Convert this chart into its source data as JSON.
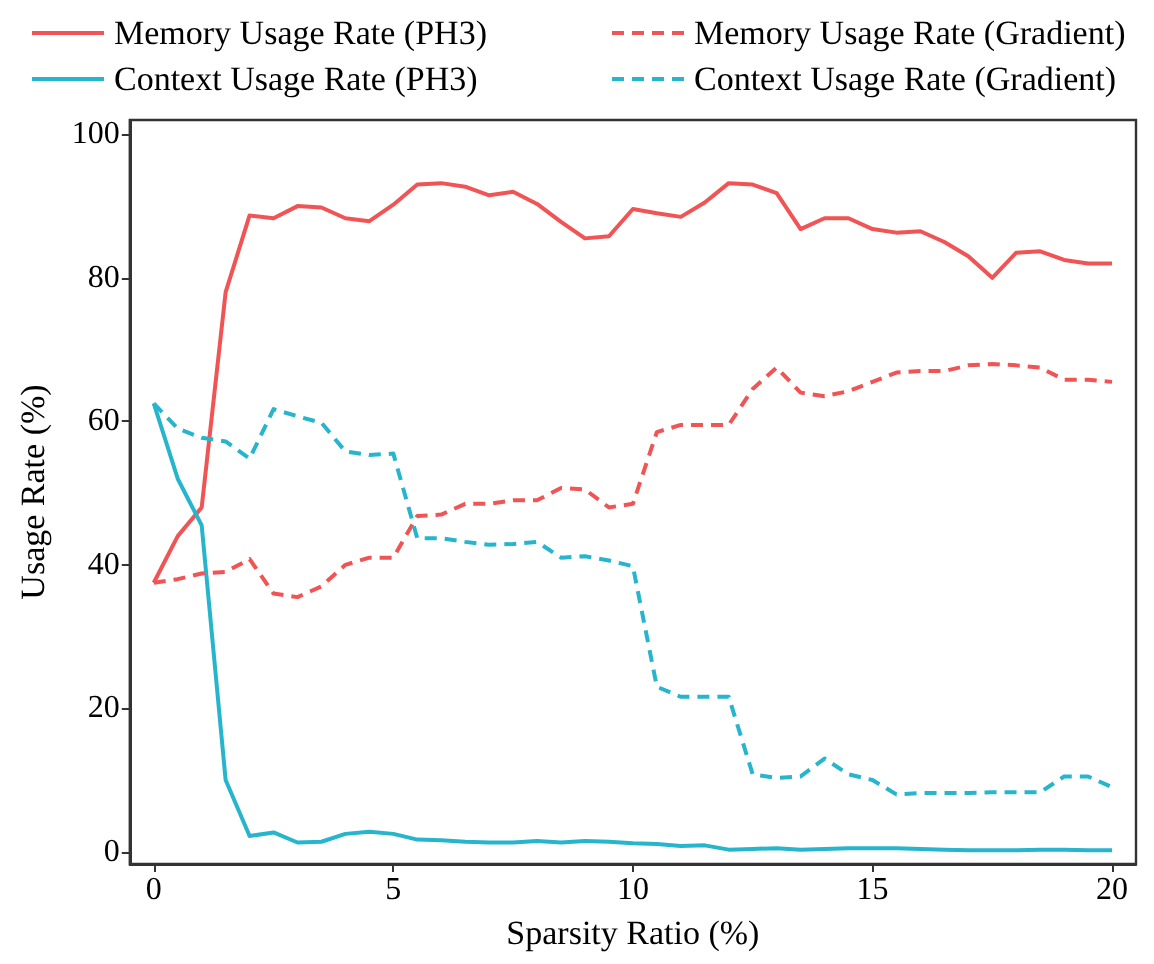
{
  "chart_data": {
    "type": "line",
    "xlabel": "Sparsity Ratio (%)",
    "ylabel": "Usage Rate (%)",
    "x": [
      0,
      0.5,
      1,
      1.5,
      2,
      2.5,
      3,
      3.5,
      4,
      4.5,
      5,
      5.5,
      6,
      6.5,
      7,
      7.5,
      8,
      8.5,
      9,
      9.5,
      10,
      10.5,
      11,
      11.5,
      12,
      12.5,
      13,
      13.5,
      14,
      14.5,
      15,
      15.5,
      16,
      16.5,
      17,
      17.5,
      18,
      18.5,
      19,
      19.5,
      20
    ],
    "series": [
      {
        "name": "Memory Usage Rate (PH3)",
        "color": "#f05454",
        "line_style": "solid",
        "values": [
          37.5,
          44,
          48,
          78,
          88.7,
          88.3,
          90,
          89.8,
          88.3,
          87.9,
          90.2,
          93,
          93.2,
          92.7,
          91.5,
          92,
          90.3,
          87.8,
          85.5,
          85.8,
          89.6,
          89,
          88.5,
          90.5,
          93.2,
          93,
          91.8,
          86.8,
          88.3,
          88.3,
          86.8,
          86.3,
          86.5,
          85,
          83,
          80,
          83.5,
          83.7,
          82.5,
          82,
          82
        ]
      },
      {
        "name": "Context Usage Rate (PH3)",
        "color": "#26b5cc",
        "line_style": "solid",
        "values": [
          62.5,
          52,
          45.5,
          10,
          2.2,
          2.7,
          1.3,
          1.4,
          2.5,
          2.8,
          2.5,
          1.7,
          1.6,
          1.4,
          1.3,
          1.3,
          1.5,
          1.3,
          1.5,
          1.4,
          1.2,
          1.1,
          0.8,
          0.9,
          0.3,
          0.4,
          0.5,
          0.3,
          0.4,
          0.5,
          0.5,
          0.5,
          0.4,
          0.3,
          0.2,
          0.2,
          0.2,
          0.3,
          0.3,
          0.2,
          0.2
        ]
      },
      {
        "name": "Memory Usage Rate (Gradient)",
        "color": "#f05454",
        "line_style": "dashed",
        "values": [
          37.5,
          38,
          38.8,
          39,
          40.8,
          36,
          35.5,
          37,
          40,
          41,
          41,
          46.8,
          47,
          48.5,
          48.5,
          49,
          49,
          50.7,
          50.5,
          48,
          48.5,
          58.5,
          59.5,
          59.5,
          59.5,
          64.5,
          67.5,
          64,
          63.5,
          64.2,
          65.5,
          66.8,
          67,
          67,
          67.8,
          68,
          67.8,
          67.5,
          65.8,
          65.8,
          65.5
        ]
      },
      {
        "name": "Context Usage Rate (Gradient)",
        "color": "#26b5cc",
        "line_style": "dashed",
        "values": [
          62.5,
          59,
          57.7,
          57.2,
          54.8,
          61.7,
          60.7,
          59.8,
          55.8,
          55.3,
          55.5,
          43.7,
          43.7,
          43.2,
          42.8,
          42.9,
          43.2,
          41,
          41.2,
          40.6,
          39.8,
          23,
          21.6,
          21.6,
          21.6,
          10.8,
          10.3,
          10.5,
          13,
          10.8,
          10,
          8,
          8.2,
          8.2,
          8.2,
          8.3,
          8.3,
          8.3,
          10.5,
          10.5,
          9
        ]
      }
    ],
    "xlim": [
      -0.5,
      20.5
    ],
    "xticks": [
      0,
      5,
      10,
      15,
      20
    ],
    "ylim": [
      -1.7,
      102
    ],
    "yticks": [
      0,
      20,
      40,
      60,
      80,
      100
    ],
    "grid": false,
    "legend": "top",
    "marker": "none"
  }
}
